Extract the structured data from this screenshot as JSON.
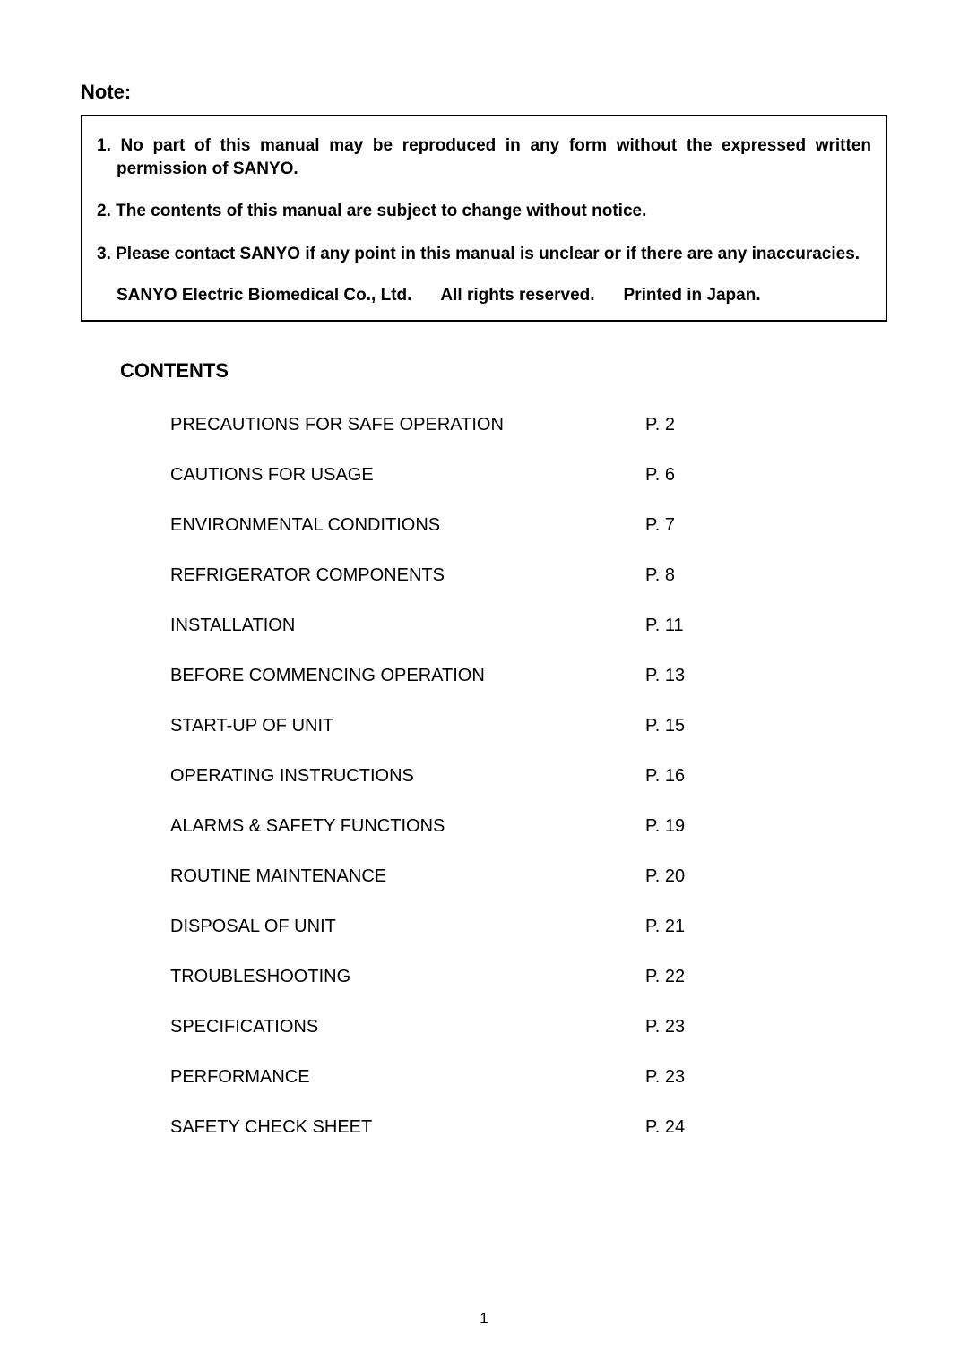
{
  "note": {
    "heading": "Note:",
    "items": [
      "1. No part of this manual may be reproduced in any form without the expressed written permission of SANYO.",
      "2. The contents of this manual are subject to change without notice.",
      "3. Please contact SANYO if any point in this manual is unclear or if there are any inaccuracies."
    ],
    "footer": {
      "company": "SANYO Electric Biomedical Co., Ltd.",
      "rights": "All rights reserved.",
      "printed": "Printed in Japan."
    }
  },
  "contents": {
    "heading": "CONTENTS",
    "entries": [
      {
        "title": "PRECAUTIONS FOR SAFE OPERATION",
        "page": "P. 2"
      },
      {
        "title": "CAUTIONS FOR USAGE",
        "page": "P. 6"
      },
      {
        "title": "ENVIRONMENTAL CONDITIONS",
        "page": "P. 7"
      },
      {
        "title": "REFRIGERATOR COMPONENTS",
        "page": "P. 8"
      },
      {
        "title": "INSTALLATION",
        "page": "P. 11"
      },
      {
        "title": "BEFORE COMMENCING OPERATION",
        "page": "P. 13"
      },
      {
        "title": "START-UP OF UNIT",
        "page": "P. 15"
      },
      {
        "title": "OPERATING INSTRUCTIONS",
        "page": "P. 16"
      },
      {
        "title": "ALARMS & SAFETY FUNCTIONS",
        "page": "P. 19"
      },
      {
        "title": "ROUTINE MAINTENANCE",
        "page": "P. 20"
      },
      {
        "title": "DISPOSAL OF UNIT",
        "page": "P. 21"
      },
      {
        "title": "TROUBLESHOOTING",
        "page": "P. 22"
      },
      {
        "title": "SPECIFICATIONS",
        "page": "P. 23"
      },
      {
        "title": "PERFORMANCE",
        "page": "P. 23"
      },
      {
        "title": "SAFETY CHECK SHEET",
        "page": "P. 24"
      }
    ]
  },
  "pageNumber": "1"
}
